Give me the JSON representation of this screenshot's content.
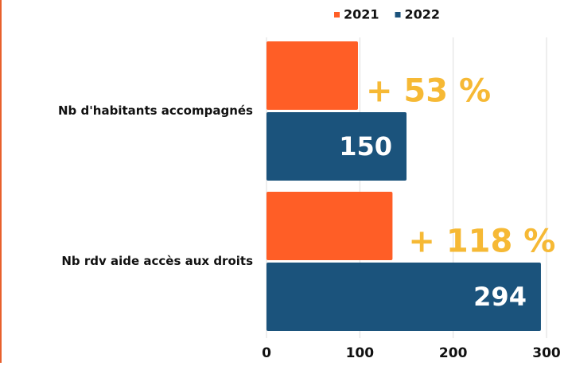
{
  "chart_data": {
    "type": "bar",
    "orientation": "horizontal",
    "categories": [
      "Nb d'habitants accompagnés",
      "Nb rdv aide accès aux droits"
    ],
    "series": [
      {
        "name": "2021",
        "color": "#ff5e26",
        "values": [
          98,
          135
        ]
      },
      {
        "name": "2022",
        "color": "#1b537c",
        "values": [
          150,
          294
        ]
      }
    ],
    "annotations": [
      "+ 53 %",
      "+ 118 %"
    ],
    "annotation_color": "#f6b935",
    "xlim": [
      0,
      300
    ],
    "xticks": [
      0,
      100,
      200,
      300
    ],
    "grid": true,
    "legend": "top"
  }
}
